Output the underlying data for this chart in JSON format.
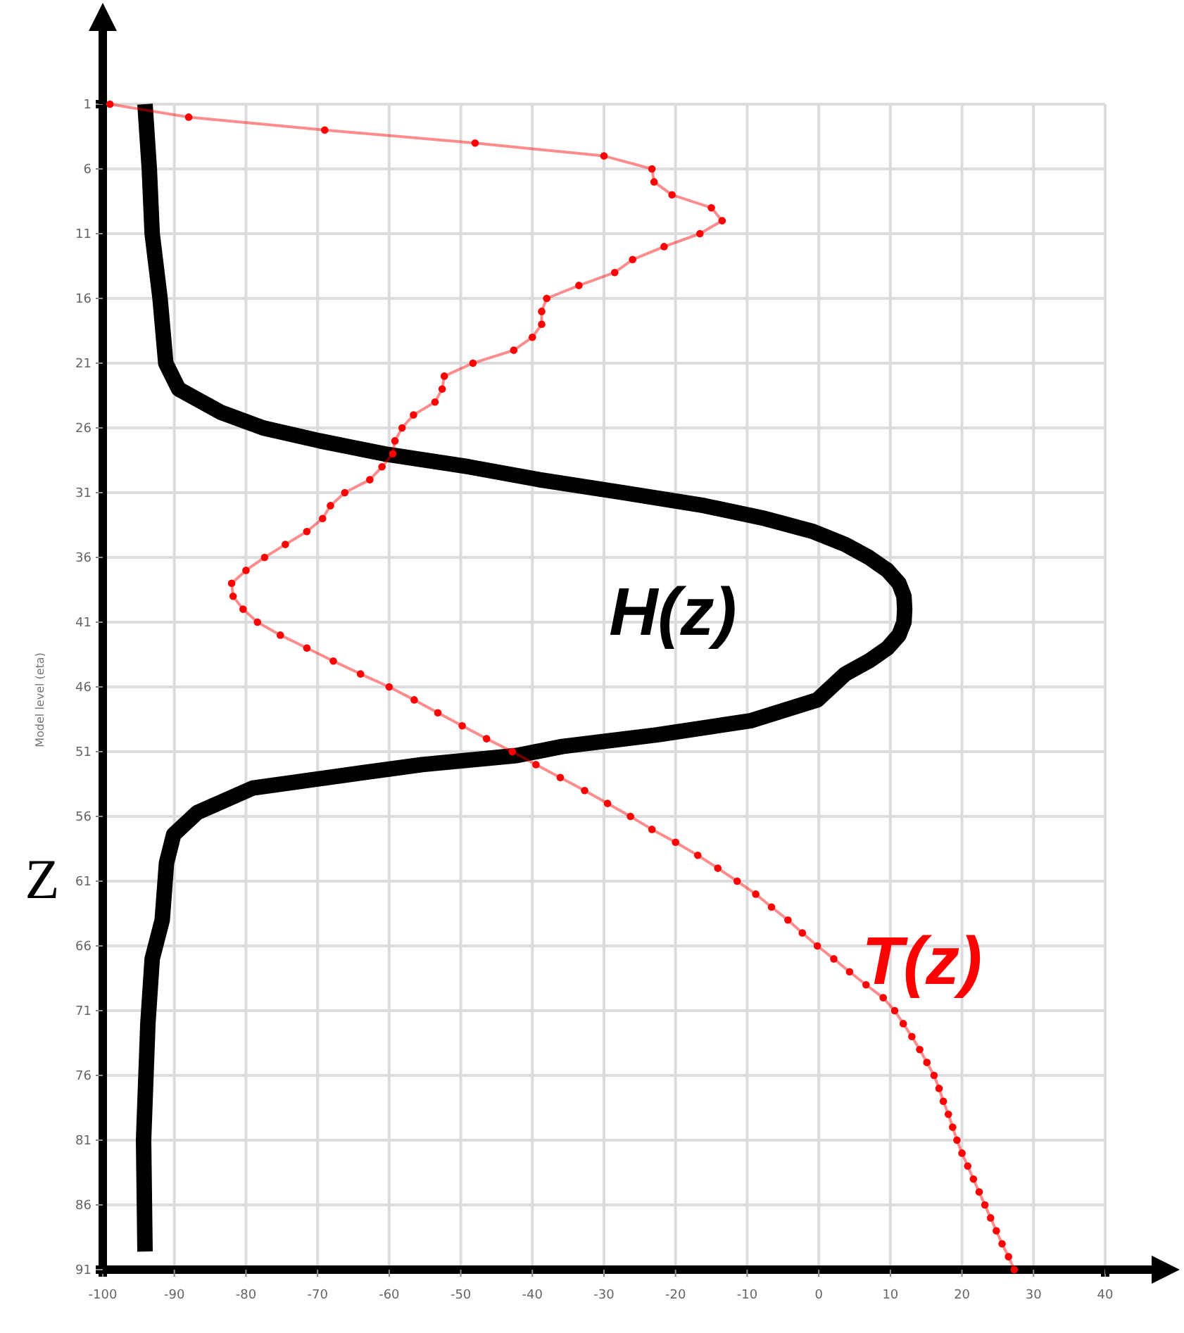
{
  "chart_data": {
    "type": "line",
    "ylabel": "Z",
    "annotations": [
      "Model level (eta)"
    ],
    "xlim": [
      -100,
      40
    ],
    "xticks": [
      -100,
      -90,
      -80,
      -70,
      -60,
      -50,
      -40,
      -30,
      -20,
      -10,
      0,
      10,
      20,
      30,
      40
    ],
    "ylim": [
      91,
      1
    ],
    "yticks": [
      1,
      6,
      11,
      16,
      21,
      26,
      31,
      36,
      41,
      46,
      51,
      56,
      61,
      66,
      71,
      76,
      81,
      86,
      91
    ],
    "grid": true,
    "legend": false,
    "series": [
      {
        "name": "H(z)",
        "color": "#000000",
        "marker": "none",
        "x": [
          -94.1,
          -93.5,
          -93.1,
          -92,
          -91.2,
          -89.4,
          -83.5,
          -77.6,
          -69.7,
          -60.7,
          -48.9,
          -39,
          -27.3,
          -16,
          -7.5,
          -0.8,
          3.7,
          7,
          9.6,
          11.2,
          11.9,
          12,
          11.9,
          11.2,
          9.6,
          7,
          3.7,
          -0.2,
          -9.4,
          -22.6,
          -35.8,
          -42.2,
          -55.4,
          -68.6,
          -79,
          -86.8,
          -90.1,
          -91.1,
          -91.7,
          -93.1,
          -93.7,
          -94.3,
          -94.1
        ],
        "values": [
          1,
          6,
          11,
          16,
          21,
          23,
          24.8,
          26,
          27,
          28,
          29,
          30,
          31,
          32,
          33,
          34,
          35,
          36,
          37,
          38,
          39,
          40,
          41,
          42,
          43,
          44,
          45,
          47,
          48.6,
          49.7,
          50.6,
          51.3,
          52,
          53,
          53.8,
          55.7,
          57.4,
          59.6,
          64,
          67,
          72,
          81,
          89.6
        ]
      },
      {
        "name": "T(z)",
        "color": "#ff0000",
        "marker": "circle",
        "x": [
          -99,
          -88,
          -69,
          -48,
          -30,
          -23.3,
          -23,
          -20.5,
          -15,
          -13.5,
          -16.6,
          -21.6,
          -26,
          -28.5,
          -33.5,
          -38,
          -38.7,
          -38.7,
          -40,
          -42.6,
          -48.3,
          -52.3,
          -52.6,
          -53.6,
          -56.6,
          -58.2,
          -59.2,
          -59.5,
          -61,
          -62.7,
          -66.2,
          -68.2,
          -69.3,
          -71.5,
          -74.5,
          -77.4,
          -80,
          -82,
          -81.8,
          -80.4,
          -78.4,
          -75.2,
          -71.5,
          -67.8,
          -64,
          -60,
          -56.5,
          -53.2,
          -49.8,
          -46.4,
          -42.8,
          -39.5,
          -36.1,
          -32.7,
          -29.5,
          -26.3,
          -23.3,
          -20,
          -16.9,
          -14.1,
          -11.4,
          -8.8,
          -6.6,
          -4.3,
          -2.3,
          -0.2,
          2.1,
          4.3,
          6.6,
          9,
          10.6,
          11.8,
          13,
          14.1,
          15.1,
          16.1,
          16.8,
          17.4,
          18.1,
          18.7,
          19.3,
          20,
          20.8,
          21.6,
          22.4,
          23.2,
          24,
          24.8,
          25.6,
          26.5,
          27.3
        ],
        "values": [
          1,
          2,
          3,
          4,
          5,
          6,
          7,
          8,
          9,
          10,
          11,
          12,
          13,
          14,
          15,
          16,
          17,
          18,
          19,
          20,
          21,
          22,
          23,
          24,
          25,
          26,
          27,
          28,
          29,
          30,
          31,
          32,
          33,
          34,
          35,
          36,
          37,
          38,
          39,
          40,
          41,
          42,
          43,
          44,
          45,
          46,
          47,
          48,
          49,
          50,
          51,
          52,
          53,
          54,
          55,
          56,
          57,
          58,
          59,
          60,
          61,
          62,
          63,
          64,
          65,
          66,
          67,
          68,
          69,
          70,
          71,
          72,
          73,
          74,
          75,
          76,
          77,
          78,
          79,
          80,
          81,
          82,
          83,
          84,
          85,
          86,
          87,
          88,
          89,
          90,
          91
        ]
      }
    ]
  }
}
